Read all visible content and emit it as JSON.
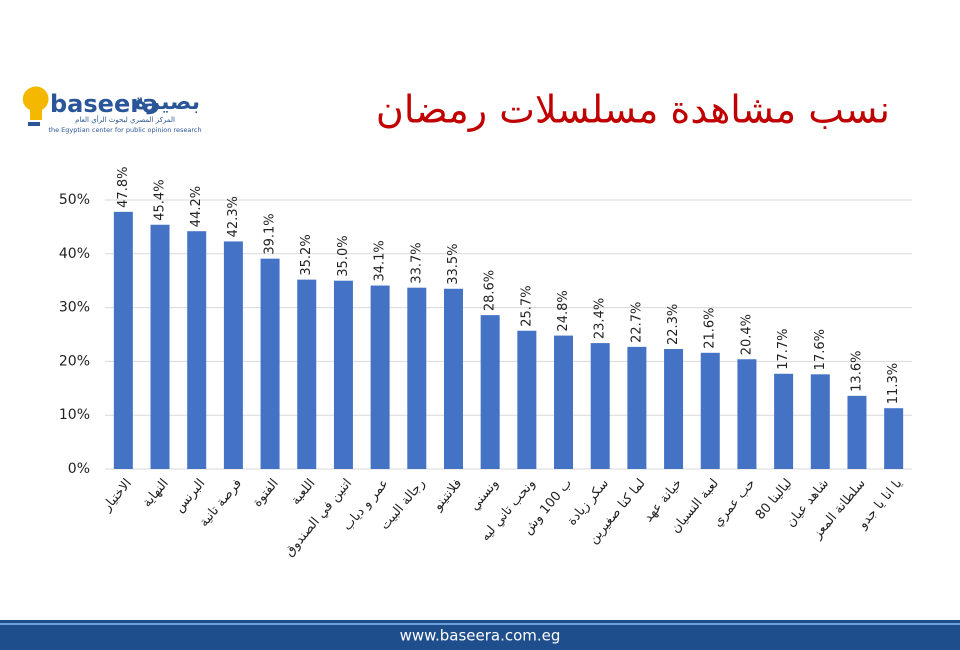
{
  "logo": {
    "latin": "baseera",
    "arabic": "بصيرة",
    "tagline_ar": "المركز المصري لبحوث الرأي العام",
    "tagline_en": "the Egyptian center for public opinion research"
  },
  "footer": {
    "url": "www.baseera.com.eg"
  },
  "chart_data": {
    "type": "bar",
    "title": "نسب مشاهدة مسلسلات رمضان",
    "categories": [
      "الاختيار",
      "النهاية",
      "البرنس",
      "فرصة تانية",
      "الفتوة",
      "اللعبة",
      "اتنين في الصندوق",
      "عمر و دياب",
      "رجالة البيت",
      "فلانتينو",
      "ونسني",
      "ونحب تاني ليه",
      "ب 100 وش",
      "سكر زيادة",
      "لما كنا صغيرين",
      "خيانة عهد",
      "لعبة النسيان",
      "حب عمري",
      "ليالينا 80",
      "شاهد عيان",
      "سلطانة المعز",
      "يا انا يا جدو"
    ],
    "values": [
      47.8,
      45.4,
      44.2,
      42.3,
      39.1,
      35.2,
      35.0,
      34.1,
      33.7,
      33.5,
      28.6,
      25.7,
      24.8,
      23.4,
      22.7,
      22.3,
      21.6,
      20.4,
      17.7,
      17.6,
      13.6,
      11.3
    ],
    "value_labels": [
      "47.8%",
      "45.4%",
      "44.2%",
      "42.3%",
      "39.1%",
      "35.2%",
      "35.0%",
      "34.1%",
      "33.7%",
      "33.5%",
      "28.6%",
      "25.7%",
      "24.8%",
      "23.4%",
      "22.7%",
      "22.3%",
      "21.6%",
      "20.4%",
      "17.7%",
      "17.6%",
      "13.6%",
      "11.3%"
    ],
    "color": "#4472c4",
    "ylim": [
      0,
      50
    ],
    "yticks": [
      {
        "value": 0,
        "label": "0%"
      },
      {
        "value": 10,
        "label": "10%"
      },
      {
        "value": 20,
        "label": "20%"
      },
      {
        "value": 30,
        "label": "30%"
      },
      {
        "value": 40,
        "label": "40%"
      },
      {
        "value": 50,
        "label": "50%"
      }
    ],
    "grid": true
  }
}
